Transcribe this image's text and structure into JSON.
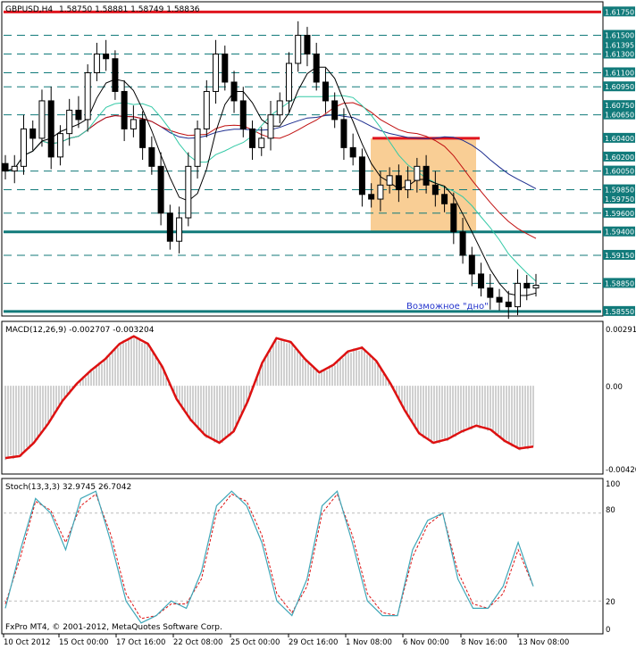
{
  "chart_data": [
    {
      "type": "candlestick",
      "panel": "main",
      "symbol": "GBPUSD,H4",
      "ohlc_text": "1.58750 1.58881 1.58749 1.58836",
      "price_axis_labels": [
        "1.61750",
        "1.61500",
        "1.61395",
        "1.61300",
        "1.61100",
        "1.60950",
        "1.60750",
        "1.60650",
        "1.60400",
        "1.60200",
        "1.60050",
        "1.59850",
        "1.59750",
        "1.59600",
        "1.59400",
        "1.59150",
        "1.58850",
        "1.58550"
      ],
      "horizontal_levels": {
        "resistance": 1.6175,
        "upper_box": 1.604,
        "support": 1.594,
        "bottom": 1.5855,
        "dashed": [
          1.615,
          1.613,
          1.611,
          1.6095,
          1.6065,
          1.6005,
          1.5985,
          1.596,
          1.5915,
          1.5885
        ]
      },
      "price_range": [
        1.5852,
        1.6182
      ],
      "annotation": "Возможное \"дно\"",
      "series": [
        {
          "name": "close",
          "values": [
            1.6005,
            1.601,
            1.605,
            1.604,
            1.608,
            1.602,
            1.6045,
            1.607,
            1.606,
            1.611,
            1.613,
            1.6125,
            1.609,
            1.605,
            1.606,
            1.603,
            1.601,
            1.596,
            1.593,
            1.5955,
            1.601,
            1.605,
            1.609,
            1.613,
            1.61,
            1.608,
            1.605,
            1.603,
            1.604,
            1.6065,
            1.608,
            1.612,
            1.615,
            1.613,
            1.61,
            1.608,
            1.606,
            1.603,
            1.602,
            1.598,
            1.5975,
            1.599,
            1.6,
            1.5985,
            1.5995,
            1.601,
            1.599,
            1.598,
            1.597,
            1.594,
            1.5915,
            1.5895,
            1.588,
            1.587,
            1.5865,
            1.586,
            1.5885,
            1.588,
            1.5883
          ]
        }
      ]
    },
    {
      "type": "line",
      "panel": "macd",
      "title": "MACD(12,26,9) -0.002707 -0.003204",
      "y_labels": [
        "0.00291",
        "0.00",
        "-0.00420"
      ],
      "ylim": [
        -0.0045,
        0.0031
      ],
      "series": [
        {
          "name": "signal",
          "values": [
            -0.0038,
            -0.0037,
            -0.003,
            -0.002,
            -0.0008,
            0.0001,
            0.0008,
            0.0014,
            0.0022,
            0.0026,
            0.0022,
            0.001,
            -0.0007,
            -0.0018,
            -0.0026,
            -0.003,
            -0.0024,
            -0.0008,
            0.0012,
            0.0025,
            0.0023,
            0.0014,
            0.0007,
            0.0011,
            0.0018,
            0.002,
            0.0013,
            0.0001,
            -0.0013,
            -0.0025,
            -0.003,
            -0.0028,
            -0.0024,
            -0.0021,
            -0.0023,
            -0.0029,
            -0.0033,
            -0.0032
          ]
        }
      ]
    },
    {
      "type": "line",
      "panel": "stochastic",
      "title": "Stoch(13,3,3) 32.9745 26.7042",
      "y_labels": [
        "100",
        "80",
        "20",
        "0"
      ],
      "ylim": [
        0,
        100
      ],
      "series": [
        {
          "name": "main",
          "values": [
            15,
            55,
            90,
            80,
            55,
            90,
            95,
            60,
            20,
            5,
            10,
            20,
            15,
            40,
            85,
            95,
            85,
            60,
            20,
            10,
            35,
            85,
            95,
            60,
            20,
            10,
            10,
            55,
            75,
            80,
            35,
            15,
            15,
            30,
            60,
            30
          ]
        },
        {
          "name": "signal",
          "values": [
            18,
            50,
            88,
            82,
            60,
            85,
            93,
            65,
            25,
            8,
            10,
            18,
            18,
            35,
            80,
            93,
            88,
            65,
            25,
            12,
            30,
            80,
            93,
            65,
            25,
            12,
            10,
            50,
            72,
            80,
            40,
            18,
            15,
            25,
            55,
            30
          ]
        }
      ]
    }
  ],
  "time_axis_labels": [
    "10 Oct 2012",
    "15 Oct 00:00",
    "17 Oct 16:00",
    "22 Oct 08:00",
    "25 Oct 00:00",
    "29 Oct 16:00",
    "1 Nov 08:00",
    "6 Nov 00:00",
    "8 Nov 16:00",
    "13 Nov 08:00"
  ],
  "watermark": "FxPro MT4, © 2001-2012, MetaQuotes Software Corp.",
  "colors": {
    "background": "#ffffff",
    "resistance": "#e0141e",
    "support": "#117a7a",
    "dashed_levels": "#117a7a",
    "price_label_bg": "#117a7a",
    "box_fill": "#f7c27b",
    "ma_slow": "#1c2d8f",
    "ma_mid": "#c01010",
    "ma_fast": "#33c9a6",
    "ma_black": "#000000",
    "macd_signal": "#dd1111",
    "macd_hist": "#a0a0a0",
    "stoch_main": "#3fa7b8",
    "stoch_signal": "#dd1111",
    "annotation": "#2233cc"
  }
}
